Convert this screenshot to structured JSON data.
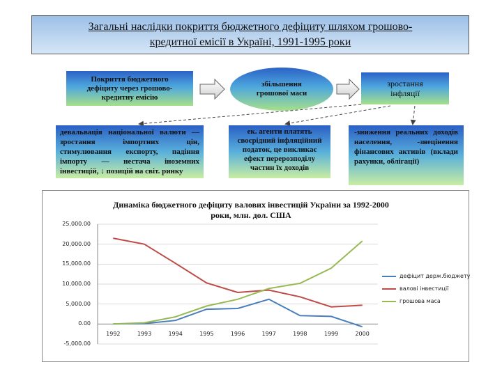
{
  "title": {
    "line1": "Загальні наслідки покриття бюджетного дефіциту шляхом грошово-",
    "line2": "кредитної емісії в Україні, 1991-1995 роки"
  },
  "flow": {
    "box1": [
      "Покриття бюджетного",
      "дефіциту через грошово-",
      "кредитну емісію"
    ],
    "ellipse": [
      "збільшення",
      "грошової маси"
    ],
    "box3": [
      "зростання",
      "інфляції"
    ],
    "box4": "девальвація національної валюти — зростання імпортних цін, стимулювання експорту, падіння імпорту — нестача іноземних інвестицій, ↓ позицій на світ. ринку",
    "box5": "ек. агенти платять своєрідний інфляційний податок, це викликає ефект перерозподілу частин їх доходів",
    "box6": "-зниження реальних доходів населення, -знецінення фінансових активів (вклади рахунки, облігації)"
  },
  "colors": {
    "deficit": "#4a7ebb",
    "investment": "#be4b48",
    "money": "#98b954",
    "grid": "#d9d9d9",
    "axis": "#888888"
  },
  "chart_data": {
    "type": "line",
    "title_line1": "Динаміка бюджетного дефіциту валових інвестицій України за 1992-2000",
    "title_line2": "роки, млн. дол. США",
    "x": [
      "1992",
      "1993",
      "1994",
      "1995",
      "1996",
      "1997",
      "1998",
      "1999",
      "2000"
    ],
    "ylim": [
      -5000,
      25000
    ],
    "yticks": [
      "25,000.00",
      "20,000.00",
      "15,000.00",
      "10,000.00",
      "5,000.00",
      "0.00",
      "-5,000.00"
    ],
    "grid": true,
    "legend_position": "right",
    "series": [
      {
        "name": "дефіцит держ.бюджету",
        "values": [
          0,
          100,
          900,
          3700,
          3900,
          6200,
          2100,
          1900,
          -700
        ]
      },
      {
        "name": "валові інвестиції",
        "values": [
          21500,
          20000,
          15200,
          10300,
          7900,
          8500,
          6800,
          4300,
          4700
        ]
      },
      {
        "name": "грошова маса",
        "values": [
          0,
          300,
          1800,
          4500,
          6200,
          8900,
          10200,
          14000,
          20800
        ]
      }
    ]
  }
}
